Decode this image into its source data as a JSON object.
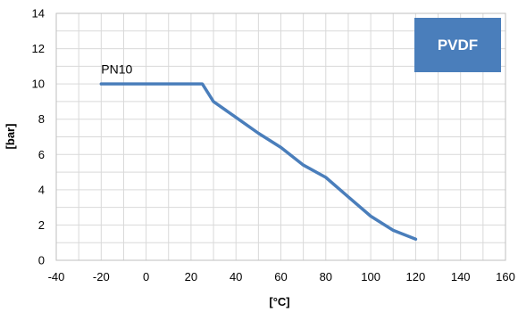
{
  "chart_data": {
    "type": "line",
    "xlabel": "[°C]",
    "ylabel": "[bar]",
    "xlim": [
      -40,
      160
    ],
    "ylim": [
      0,
      14
    ],
    "x_major_step": 20,
    "y_major_step": 2,
    "grid": true,
    "x_ticks": [
      "-40",
      "-20",
      "0",
      "20",
      "40",
      "60",
      "80",
      "100",
      "120",
      "140",
      "160"
    ],
    "y_ticks": [
      "0",
      "2",
      "4",
      "6",
      "8",
      "10",
      "12",
      "14"
    ],
    "series": [
      {
        "color": "#4a7ebb",
        "points": [
          {
            "x": -20,
            "y": 10
          },
          {
            "x": 25,
            "y": 10
          },
          {
            "x": 30,
            "y": 9
          },
          {
            "x": 40,
            "y": 8.1
          },
          {
            "x": 50,
            "y": 7.2
          },
          {
            "x": 60,
            "y": 6.4
          },
          {
            "x": 70,
            "y": 5.4
          },
          {
            "x": 80,
            "y": 4.7
          },
          {
            "x": 90,
            "y": 3.6
          },
          {
            "x": 100,
            "y": 2.5
          },
          {
            "x": 110,
            "y": 1.7
          },
          {
            "x": 120,
            "y": 1.2
          }
        ]
      }
    ],
    "annotations": [
      {
        "text": "PN10",
        "x": -20,
        "y": 10.6
      }
    ],
    "badge": {
      "text": "PVDF",
      "color": "#4a7ebb",
      "position": "top-right"
    }
  }
}
